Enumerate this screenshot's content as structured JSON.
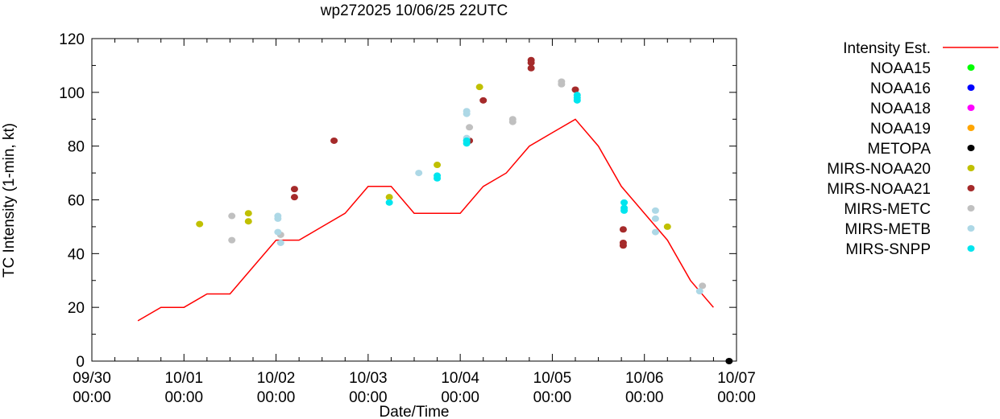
{
  "chart_data": {
    "type": "scatter",
    "title": "wp272025 10/06/25 22UTC",
    "xlabel": "Date/Time",
    "ylabel": "TC Intensity (1-min, kt)",
    "xlim": [
      0,
      7
    ],
    "ylim": [
      0,
      120
    ],
    "y_ticks": [
      0,
      20,
      40,
      60,
      80,
      100,
      120
    ],
    "x_ticks": [
      {
        "value": 0,
        "date": "09/30",
        "time": "00:00"
      },
      {
        "value": 1,
        "date": "10/01",
        "time": "00:00"
      },
      {
        "value": 2,
        "date": "10/02",
        "time": "00:00"
      },
      {
        "value": 3,
        "date": "10/03",
        "time": "00:00"
      },
      {
        "value": 4,
        "date": "10/04",
        "time": "00:00"
      },
      {
        "value": 5,
        "date": "10/05",
        "time": "00:00"
      },
      {
        "value": 6,
        "date": "10/06",
        "time": "00:00"
      },
      {
        "value": 7,
        "date": "10/07",
        "time": "00:00"
      }
    ],
    "line_series": {
      "name": "Intensity Est.",
      "color": "#ff0000",
      "x": [
        0.5,
        0.75,
        1.0,
        1.25,
        1.5,
        1.75,
        2.0,
        2.25,
        2.5,
        2.75,
        3.0,
        3.25,
        3.5,
        3.75,
        4.0,
        4.25,
        4.5,
        4.75,
        5.0,
        5.25,
        5.5,
        5.75,
        6.0,
        6.25,
        6.5,
        6.75
      ],
      "y": [
        15,
        20,
        20,
        25,
        25,
        35,
        45,
        45,
        50,
        55,
        65,
        65,
        55,
        55,
        55,
        65,
        70,
        80,
        85,
        90,
        80,
        65,
        55,
        45,
        30,
        20
      ]
    },
    "scatter_series": [
      {
        "name": "NOAA15",
        "color": "#00ff00",
        "x": [],
        "y": []
      },
      {
        "name": "NOAA16",
        "color": "#0000ff",
        "x": [],
        "y": []
      },
      {
        "name": "NOAA18",
        "color": "#ff00ff",
        "x": [],
        "y": []
      },
      {
        "name": "NOAA19",
        "color": "#ffa500",
        "x": [],
        "y": []
      },
      {
        "name": "METOPA",
        "color": "#000000",
        "x": [
          6.92
        ],
        "y": [
          0
        ]
      },
      {
        "name": "MIRS-NOAA20",
        "color": "#c0c000",
        "x": [
          1.17,
          1.7,
          1.7,
          3.23,
          3.75,
          4.21
        ],
        "y": [
          51,
          55,
          52,
          61,
          73,
          102
        ]
      },
      {
        "name": "MIRS-NOAA21",
        "color": "#a52a2a",
        "x": [
          2.2,
          2.2,
          2.63,
          4.1,
          4.25,
          4.77,
          4.77,
          4.77,
          5.25,
          5.77,
          5.77,
          5.77
        ],
        "y": [
          64,
          61,
          82,
          82,
          97,
          112,
          111,
          109,
          101,
          49,
          44,
          43
        ]
      },
      {
        "name": "MIRS-METC",
        "color": "#c0c0c0",
        "x": [
          1.52,
          1.52,
          2.05,
          4.1,
          4.57,
          4.57,
          5.1,
          5.1,
          6.63
        ],
        "y": [
          54,
          45,
          47,
          87,
          90,
          89,
          104,
          103,
          28
        ]
      },
      {
        "name": "MIRS-METB",
        "color": "#add8e6",
        "x": [
          2.02,
          2.02,
          2.02,
          2.05,
          3.55,
          4.07,
          4.07,
          4.07,
          4.07,
          6.12,
          6.12,
          6.12,
          6.6
        ],
        "y": [
          54,
          53,
          48,
          44,
          70,
          93,
          92,
          83,
          82,
          56,
          53,
          48,
          26
        ]
      },
      {
        "name": "MIRS-SNPP",
        "color": "#00e5ee",
        "x": [
          3.23,
          3.75,
          3.75,
          4.07,
          4.07,
          5.27,
          5.27,
          5.27,
          5.78,
          5.78,
          5.78
        ],
        "y": [
          59,
          69,
          68,
          82,
          81,
          99,
          98,
          97,
          59,
          57,
          56
        ]
      },
      {
        "name": "MIRS-NOAA20",
        "color": "#c0c000",
        "x": [
          6.25
        ],
        "y": [
          50
        ],
        "legend": false
      }
    ],
    "legend_position": "right"
  }
}
